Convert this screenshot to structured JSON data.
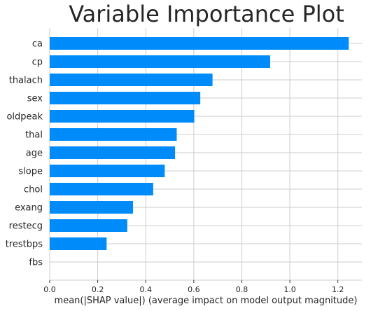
{
  "chart_data": {
    "type": "bar",
    "orientation": "horizontal",
    "title": "Variable Importance Plot",
    "xlabel": "mean(|SHAP value|) (average impact on model output magnitude)",
    "ylabel": "",
    "categories": [
      "ca",
      "cp",
      "thalach",
      "sex",
      "oldpeak",
      "thal",
      "age",
      "slope",
      "chol",
      "exang",
      "restecg",
      "trestbps",
      "fbs"
    ],
    "values": [
      1.245,
      0.918,
      0.678,
      0.627,
      0.602,
      0.529,
      0.522,
      0.479,
      0.431,
      0.347,
      0.323,
      0.237,
      0.0
    ],
    "xlim": [
      0,
      1.3
    ],
    "xticks": [
      0.0,
      0.2,
      0.4,
      0.6,
      0.8,
      1.0,
      1.2
    ],
    "xtick_labels": [
      "0.0",
      "0.2",
      "0.4",
      "0.6",
      "0.8",
      "1.0",
      "1.2"
    ],
    "grid": true,
    "bar_color": "#008bfb",
    "grid_color": "#cccccc"
  }
}
